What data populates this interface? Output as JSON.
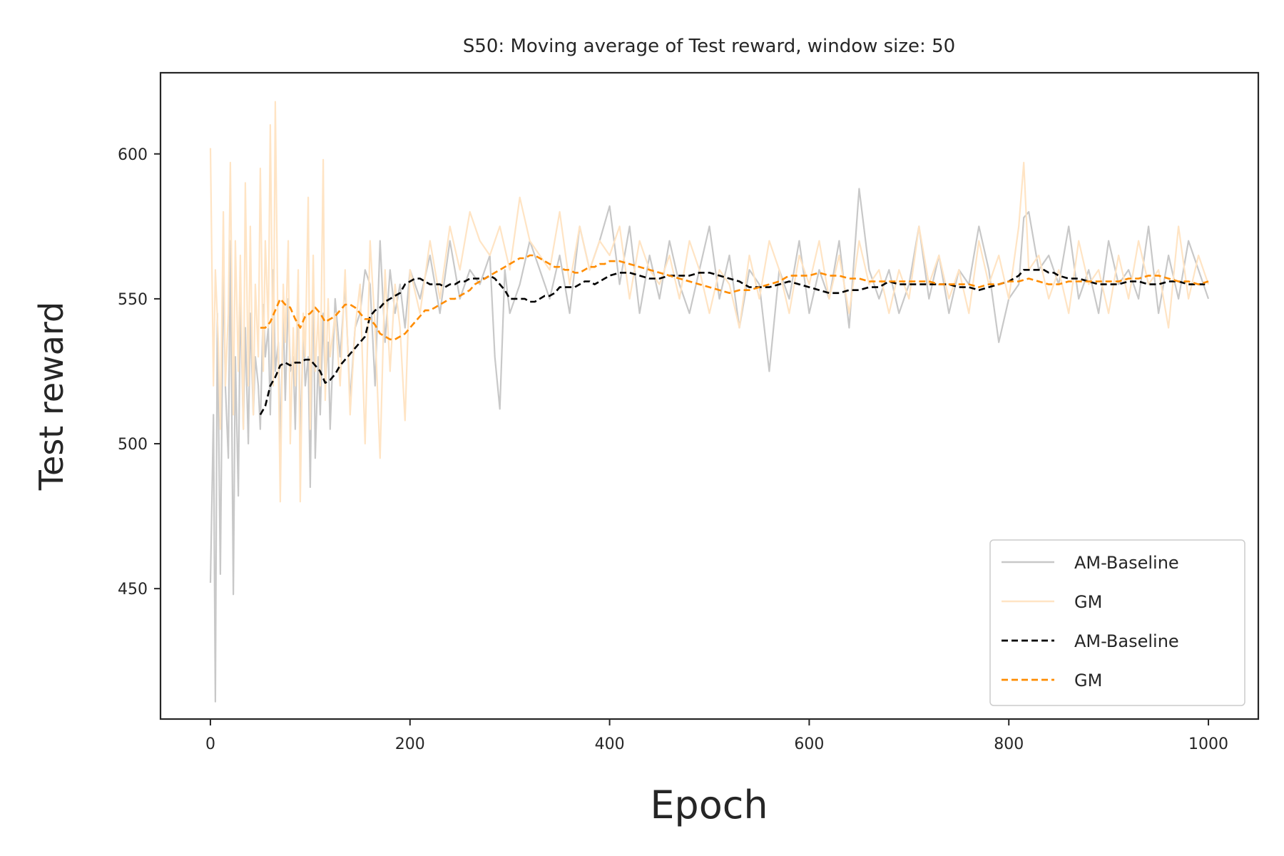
{
  "chart_data": {
    "type": "line",
    "title": "S50: Moving average of Test reward, window size: 50",
    "xlabel": "Epoch",
    "ylabel": "Test reward",
    "xlim": [
      -50,
      1050
    ],
    "ylim": [
      405,
      628
    ],
    "xticks": [
      0,
      200,
      400,
      600,
      800,
      1000
    ],
    "yticks": [
      450,
      500,
      550,
      600
    ],
    "grid": false,
    "legend_position": "lower-right",
    "series": [
      {
        "name": "AM-Baseline",
        "style": "solid",
        "color": "#c8c8c8",
        "x": [
          0,
          3,
          5,
          7,
          10,
          13,
          15,
          18,
          20,
          23,
          25,
          28,
          30,
          33,
          35,
          38,
          40,
          43,
          45,
          48,
          50,
          53,
          55,
          58,
          60,
          63,
          65,
          68,
          70,
          73,
          75,
          78,
          80,
          83,
          85,
          88,
          90,
          93,
          95,
          98,
          100,
          103,
          105,
          108,
          110,
          113,
          115,
          118,
          120,
          125,
          130,
          135,
          140,
          145,
          150,
          155,
          160,
          165,
          170,
          175,
          180,
          185,
          190,
          195,
          200,
          210,
          220,
          230,
          240,
          250,
          260,
          270,
          280,
          285,
          290,
          295,
          300,
          310,
          320,
          330,
          340,
          350,
          360,
          370,
          380,
          390,
          400,
          410,
          420,
          430,
          440,
          450,
          460,
          470,
          480,
          490,
          500,
          510,
          520,
          530,
          540,
          550,
          560,
          570,
          580,
          590,
          600,
          610,
          620,
          630,
          640,
          650,
          660,
          670,
          680,
          690,
          700,
          710,
          720,
          730,
          740,
          750,
          760,
          770,
          780,
          790,
          800,
          810,
          815,
          820,
          830,
          840,
          850,
          860,
          870,
          880,
          890,
          900,
          910,
          920,
          930,
          940,
          950,
          960,
          970,
          980,
          990,
          1000
        ],
        "values": [
          452,
          510,
          411,
          545,
          455,
          563,
          520,
          495,
          570,
          448,
          530,
          482,
          552,
          505,
          540,
          500,
          545,
          510,
          530,
          520,
          505,
          548,
          530,
          540,
          510,
          560,
          525,
          535,
          500,
          545,
          515,
          550,
          525,
          530,
          505,
          555,
          500,
          540,
          520,
          530,
          485,
          560,
          495,
          530,
          510,
          545,
          520,
          535,
          505,
          550,
          530,
          555,
          515,
          540,
          545,
          560,
          555,
          520,
          570,
          535,
          560,
          545,
          555,
          540,
          560,
          550,
          565,
          545,
          570,
          550,
          560,
          555,
          565,
          530,
          512,
          560,
          545,
          555,
          570,
          560,
          550,
          565,
          545,
          575,
          560,
          570,
          582,
          555,
          575,
          545,
          565,
          550,
          570,
          555,
          545,
          560,
          575,
          550,
          565,
          540,
          560,
          555,
          525,
          560,
          550,
          570,
          545,
          560,
          550,
          570,
          540,
          588,
          560,
          550,
          560,
          545,
          555,
          575,
          550,
          565,
          545,
          560,
          555,
          575,
          560,
          535,
          550,
          555,
          578,
          580,
          560,
          565,
          555,
          575,
          550,
          560,
          545,
          570,
          555,
          560,
          550,
          575,
          545,
          565,
          550,
          570,
          560,
          550
        ]
      },
      {
        "name": "GM",
        "style": "solid",
        "color": "#ffe4c4",
        "x": [
          0,
          3,
          5,
          8,
          10,
          13,
          15,
          18,
          20,
          23,
          25,
          28,
          30,
          33,
          35,
          38,
          40,
          43,
          45,
          48,
          50,
          53,
          55,
          58,
          60,
          63,
          65,
          68,
          70,
          73,
          75,
          78,
          80,
          83,
          85,
          88,
          90,
          93,
          95,
          98,
          100,
          103,
          105,
          108,
          110,
          113,
          115,
          118,
          120,
          125,
          130,
          135,
          140,
          145,
          150,
          155,
          160,
          165,
          170,
          175,
          180,
          185,
          190,
          195,
          200,
          210,
          220,
          230,
          240,
          250,
          260,
          270,
          280,
          290,
          300,
          310,
          320,
          330,
          340,
          350,
          360,
          370,
          380,
          390,
          400,
          410,
          420,
          430,
          440,
          450,
          460,
          470,
          480,
          490,
          500,
          510,
          520,
          530,
          540,
          550,
          560,
          570,
          580,
          590,
          600,
          610,
          620,
          630,
          640,
          650,
          660,
          670,
          680,
          690,
          700,
          710,
          720,
          730,
          740,
          750,
          760,
          770,
          780,
          790,
          800,
          810,
          815,
          820,
          830,
          840,
          850,
          860,
          870,
          880,
          890,
          900,
          910,
          920,
          930,
          940,
          950,
          960,
          970,
          980,
          990,
          1000
        ],
        "values": [
          602,
          520,
          560,
          535,
          505,
          580,
          520,
          545,
          597,
          510,
          570,
          525,
          565,
          505,
          590,
          520,
          575,
          510,
          555,
          530,
          595,
          525,
          570,
          540,
          610,
          520,
          618,
          530,
          480,
          555,
          535,
          570,
          500,
          540,
          520,
          560,
          480,
          545,
          530,
          585,
          505,
          565,
          525,
          545,
          520,
          598,
          515,
          550,
          530,
          545,
          520,
          560,
          510,
          540,
          555,
          500,
          570,
          540,
          495,
          560,
          525,
          555,
          540,
          508,
          560,
          545,
          570,
          550,
          575,
          560,
          580,
          570,
          565,
          575,
          560,
          585,
          570,
          565,
          560,
          580,
          555,
          575,
          560,
          570,
          565,
          575,
          550,
          570,
          560,
          555,
          565,
          550,
          570,
          560,
          545,
          560,
          555,
          540,
          565,
          550,
          570,
          560,
          545,
          565,
          555,
          570,
          550,
          565,
          545,
          570,
          555,
          560,
          545,
          560,
          550,
          575,
          555,
          565,
          550,
          560,
          545,
          570,
          555,
          565,
          550,
          575,
          597,
          560,
          565,
          550,
          560,
          545,
          570,
          555,
          560,
          545,
          565,
          550,
          570,
          555,
          560,
          540,
          575,
          550,
          565,
          555
        ]
      },
      {
        "name": "AM-Baseline",
        "style": "dashed",
        "color": "#000000",
        "x": [
          50,
          55,
          60,
          65,
          70,
          75,
          80,
          85,
          90,
          95,
          100,
          105,
          110,
          115,
          120,
          125,
          130,
          135,
          140,
          145,
          150,
          155,
          160,
          165,
          170,
          175,
          180,
          185,
          190,
          195,
          200,
          205,
          210,
          215,
          220,
          225,
          230,
          235,
          240,
          245,
          250,
          255,
          260,
          265,
          270,
          275,
          280,
          285,
          290,
          295,
          300,
          305,
          310,
          315,
          320,
          325,
          330,
          335,
          340,
          345,
          350,
          355,
          360,
          365,
          370,
          375,
          380,
          385,
          390,
          395,
          400,
          410,
          420,
          430,
          440,
          450,
          460,
          470,
          480,
          490,
          500,
          510,
          520,
          530,
          540,
          550,
          560,
          570,
          580,
          590,
          600,
          610,
          620,
          630,
          640,
          650,
          660,
          670,
          680,
          690,
          700,
          710,
          720,
          730,
          740,
          750,
          760,
          770,
          780,
          790,
          800,
          810,
          815,
          820,
          825,
          830,
          835,
          840,
          845,
          850,
          860,
          870,
          880,
          890,
          900,
          910,
          920,
          930,
          940,
          950,
          960,
          970,
          980,
          990,
          1000
        ],
        "values": [
          510,
          513,
          520,
          523,
          527,
          528,
          527,
          528,
          528,
          529,
          529,
          527,
          525,
          521,
          522,
          524,
          527,
          529,
          531,
          533,
          535,
          537,
          544,
          546,
          547,
          549,
          550,
          551,
          552,
          555,
          556,
          557,
          557,
          556,
          555,
          555,
          555,
          554,
          555,
          555,
          556,
          556,
          557,
          557,
          557,
          557,
          558,
          557,
          555,
          553,
          550,
          550,
          550,
          550,
          549,
          549,
          550,
          551,
          551,
          552,
          554,
          554,
          554,
          554,
          555,
          556,
          556,
          555,
          556,
          557,
          558,
          559,
          559,
          558,
          557,
          557,
          558,
          558,
          558,
          559,
          559,
          558,
          557,
          556,
          554,
          554,
          554,
          555,
          556,
          555,
          554,
          553,
          552,
          552,
          553,
          553,
          554,
          554,
          556,
          555,
          555,
          555,
          555,
          555,
          555,
          554,
          554,
          553,
          554,
          555,
          556,
          558,
          560,
          560,
          560,
          560,
          560,
          559,
          559,
          558,
          557,
          557,
          556,
          555,
          555,
          555,
          556,
          556,
          555,
          555,
          556,
          556,
          555,
          555,
          555
        ]
      },
      {
        "name": "GM",
        "style": "dashed",
        "color": "#ff8c00",
        "x": [
          50,
          55,
          60,
          65,
          70,
          75,
          80,
          85,
          90,
          95,
          100,
          105,
          110,
          115,
          120,
          125,
          130,
          135,
          140,
          145,
          150,
          155,
          160,
          165,
          170,
          175,
          180,
          185,
          190,
          195,
          200,
          205,
          210,
          215,
          220,
          225,
          230,
          235,
          240,
          245,
          250,
          255,
          260,
          265,
          270,
          275,
          280,
          285,
          290,
          295,
          300,
          305,
          310,
          315,
          320,
          325,
          330,
          335,
          340,
          345,
          350,
          355,
          360,
          365,
          370,
          375,
          380,
          385,
          390,
          395,
          400,
          410,
          420,
          430,
          440,
          450,
          460,
          470,
          480,
          490,
          500,
          510,
          520,
          530,
          540,
          550,
          560,
          570,
          580,
          590,
          600,
          610,
          620,
          630,
          640,
          650,
          660,
          670,
          680,
          690,
          700,
          710,
          720,
          730,
          740,
          750,
          760,
          770,
          780,
          790,
          800,
          810,
          820,
          830,
          840,
          850,
          860,
          870,
          880,
          890,
          900,
          910,
          920,
          930,
          940,
          950,
          960,
          970,
          980,
          990,
          1000
        ],
        "values": [
          540,
          540,
          542,
          546,
          550,
          548,
          547,
          543,
          540,
          544,
          545,
          547,
          545,
          542,
          543,
          544,
          546,
          548,
          548,
          547,
          545,
          543,
          543,
          541,
          538,
          537,
          536,
          536,
          537,
          538,
          540,
          542,
          544,
          546,
          546,
          547,
          548,
          549,
          550,
          550,
          551,
          552,
          553,
          555,
          556,
          557,
          558,
          559,
          560,
          561,
          562,
          563,
          564,
          564,
          565,
          565,
          564,
          563,
          562,
          561,
          561,
          560,
          560,
          559,
          559,
          560,
          561,
          561,
          562,
          562,
          563,
          563,
          562,
          561,
          560,
          559,
          558,
          557,
          556,
          555,
          554,
          553,
          552,
          553,
          553,
          554,
          555,
          556,
          558,
          558,
          558,
          559,
          558,
          558,
          557,
          557,
          556,
          556,
          556,
          556,
          556,
          556,
          556,
          555,
          555,
          555,
          555,
          554,
          555,
          555,
          556,
          556,
          557,
          556,
          555,
          555,
          556,
          556,
          556,
          556,
          556,
          556,
          557,
          557,
          558,
          558,
          557,
          556,
          556,
          555,
          556
        ]
      }
    ]
  }
}
